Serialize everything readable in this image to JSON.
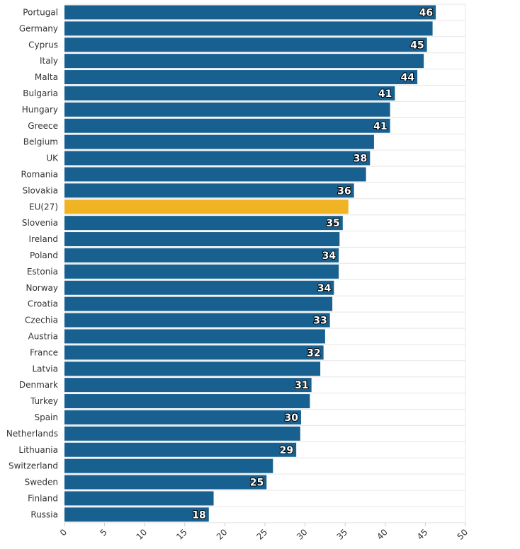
{
  "chart_data": {
    "type": "bar",
    "orientation": "horizontal",
    "categories": [
      "Portugal",
      "Germany",
      "Cyprus",
      "Italy",
      "Malta",
      "Bulgaria",
      "Hungary",
      "Greece",
      "Belgium",
      "UK",
      "Romania",
      "Slovakia",
      "EU(27)",
      "Slovenia",
      "Ireland",
      "Poland",
      "Estonia",
      "Norway",
      "Croatia",
      "Czechia",
      "Austria",
      "France",
      "Latvia",
      "Denmark",
      "Turkey",
      "Spain",
      "Netherlands",
      "Lithuania",
      "Switzerland",
      "Sweden",
      "Finland",
      "Russia"
    ],
    "values": [
      46.3,
      45.9,
      45.2,
      44.8,
      44.0,
      41.2,
      40.6,
      40.6,
      38.6,
      38.1,
      37.6,
      36.1,
      35.4,
      34.7,
      34.3,
      34.2,
      34.2,
      33.6,
      33.4,
      33.1,
      32.5,
      32.3,
      31.9,
      30.8,
      30.6,
      29.5,
      29.4,
      28.9,
      26.0,
      25.2,
      18.6,
      18.0
    ],
    "data_labels": [
      "46",
      "",
      "45",
      "",
      "44",
      "41",
      "",
      "41",
      "",
      "38",
      "",
      "36",
      "",
      "35",
      "",
      "34",
      "",
      "34",
      "",
      "33",
      "",
      "32",
      "",
      "31",
      "",
      "30",
      "",
      "29",
      "",
      "25",
      "",
      "18"
    ],
    "highlight": "EU(27)",
    "colors": {
      "bar": "#17608f",
      "highlight": "#f0b323"
    },
    "x_ticks": [
      "0",
      "5",
      "10",
      "15",
      "20",
      "25",
      "30",
      "35",
      "40",
      "45",
      "50"
    ],
    "xlim": [
      0,
      50
    ],
    "grid": true,
    "legend": "none",
    "title": "",
    "xlabel": "",
    "ylabel": ""
  }
}
